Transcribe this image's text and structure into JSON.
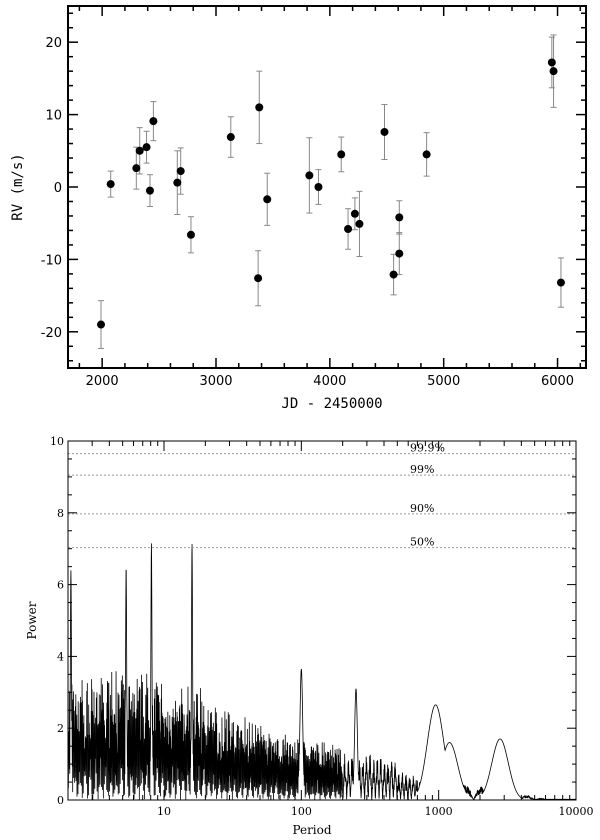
{
  "chart_data": [
    {
      "type": "scatter",
      "title": "",
      "xlabel": "JD - 2450000",
      "ylabel": "RV (m/s)",
      "xlim": [
        1700,
        6250
      ],
      "ylim": [
        -25,
        25
      ],
      "xticks": [
        2000,
        3000,
        4000,
        5000,
        6000
      ],
      "yticks": [
        -20,
        -10,
        0,
        10,
        20
      ],
      "grid": false,
      "points": [
        {
          "x": 1990,
          "y": -19.0,
          "err": 3.3
        },
        {
          "x": 2075,
          "y": 0.4,
          "err": 1.8
        },
        {
          "x": 2300,
          "y": 2.6,
          "err": 2.9
        },
        {
          "x": 2330,
          "y": 5.0,
          "err": 3.2
        },
        {
          "x": 2390,
          "y": 5.5,
          "err": 2.2
        },
        {
          "x": 2420,
          "y": -0.5,
          "err": 2.2
        },
        {
          "x": 2450,
          "y": 9.1,
          "err": 2.7
        },
        {
          "x": 2660,
          "y": 0.6,
          "err": 4.4
        },
        {
          "x": 2690,
          "y": 2.2,
          "err": 3.2
        },
        {
          "x": 2780,
          "y": -6.6,
          "err": 2.5
        },
        {
          "x": 3130,
          "y": 6.9,
          "err": 2.8
        },
        {
          "x": 3370,
          "y": -12.6,
          "err": 3.8
        },
        {
          "x": 3380,
          "y": 11.0,
          "err": 5.0
        },
        {
          "x": 3450,
          "y": -1.7,
          "err": 3.6
        },
        {
          "x": 3820,
          "y": 1.6,
          "err": 5.2
        },
        {
          "x": 3900,
          "y": 0.0,
          "err": 2.4
        },
        {
          "x": 4100,
          "y": 4.5,
          "err": 2.4
        },
        {
          "x": 4160,
          "y": -5.8,
          "err": 2.8
        },
        {
          "x": 4220,
          "y": -3.7,
          "err": 2.2
        },
        {
          "x": 4260,
          "y": -5.1,
          "err": 4.5
        },
        {
          "x": 4480,
          "y": 7.6,
          "err": 3.8
        },
        {
          "x": 4560,
          "y": -12.1,
          "err": 2.8
        },
        {
          "x": 4610,
          "y": -4.2,
          "err": 2.3
        },
        {
          "x": 4610,
          "y": -9.2,
          "err": 2.9
        },
        {
          "x": 4850,
          "y": 4.5,
          "err": 3.0
        },
        {
          "x": 5950,
          "y": 17.2,
          "err": 3.5
        },
        {
          "x": 5965,
          "y": 16.0,
          "err": 5.0
        },
        {
          "x": 6030,
          "y": -13.2,
          "err": 3.4
        }
      ]
    },
    {
      "type": "line",
      "title": "",
      "xlabel": "Period",
      "ylabel": "Power",
      "xscale": "log",
      "xlim": [
        2,
        10000
      ],
      "ylim": [
        0,
        10
      ],
      "xticks": [
        10,
        100,
        1000,
        10000
      ],
      "xtick_labels": [
        "10",
        "100",
        "1000",
        "10000"
      ],
      "yticks": [
        0,
        2,
        4,
        6,
        8,
        10
      ],
      "grid": false,
      "fap_levels": [
        {
          "label": "99.9%",
          "power": 9.65
        },
        {
          "label": "99%",
          "power": 9.05
        },
        {
          "label": "90%",
          "power": 7.97
        },
        {
          "label": "50%",
          "power": 7.03
        }
      ],
      "peaks": [
        {
          "period": 2.1,
          "power": 6.4
        },
        {
          "period": 5.3,
          "power": 6.5
        },
        {
          "period": 8.1,
          "power": 7.15
        },
        {
          "period": 16.0,
          "power": 7.15
        },
        {
          "period": 100,
          "power": 3.65
        },
        {
          "period": 250,
          "power": 3.1
        },
        {
          "period": 950,
          "power": 2.65
        },
        {
          "period": 1200,
          "power": 1.6
        },
        {
          "period": 2800,
          "power": 1.7
        }
      ]
    }
  ]
}
